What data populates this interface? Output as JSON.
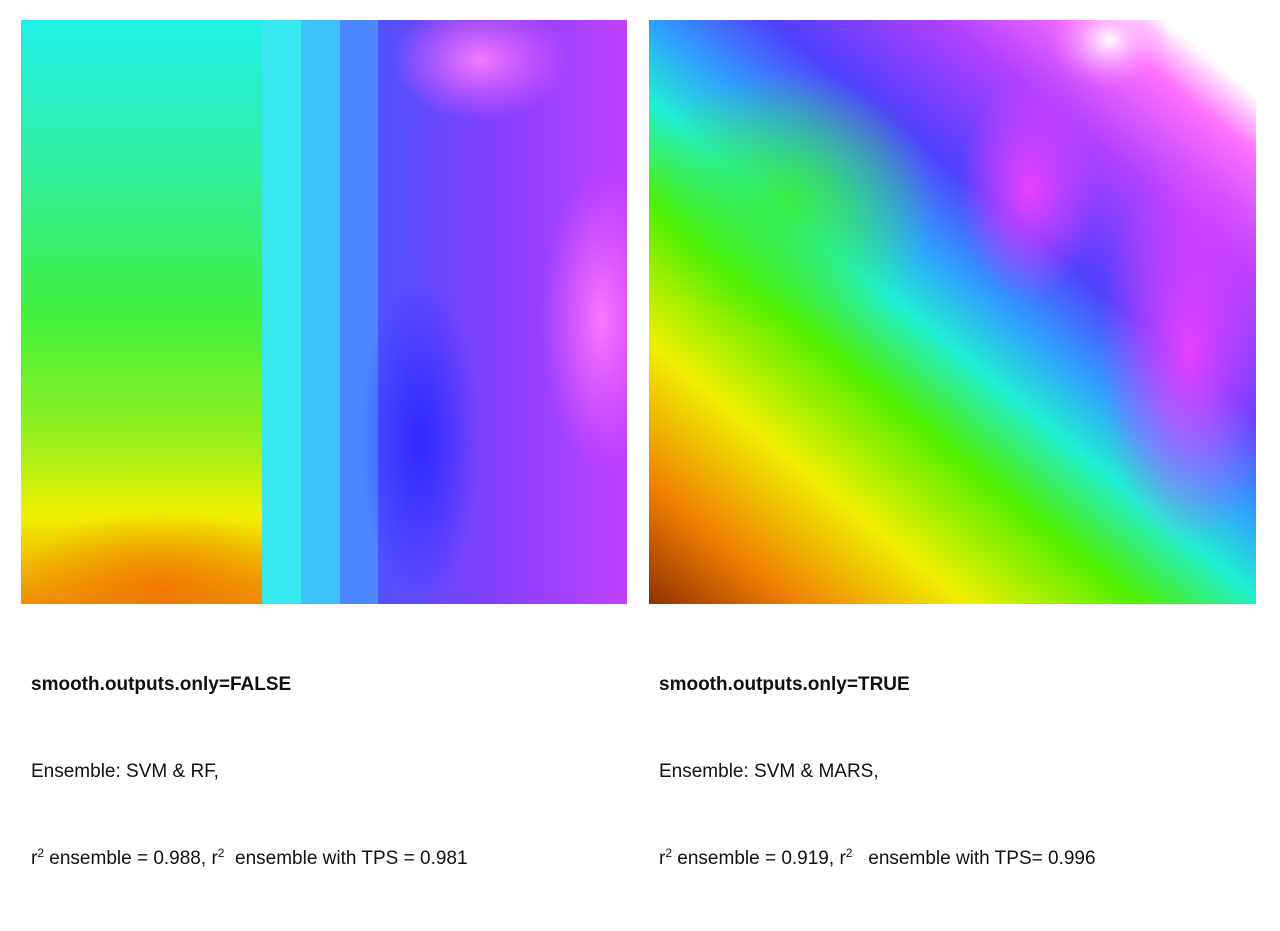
{
  "panels": [
    {
      "title": "smooth.outputs.only=FALSE",
      "ensemble": "Ensemble: SVM & RF,",
      "stats": [
        "r",
        "2",
        " ensemble = 0.988, ",
        "r",
        "2",
        "  ensemble with TPS = 0.981"
      ]
    },
    {
      "title": "smooth.outputs.only=TRUE",
      "ensemble": "Ensemble: SVM & MARS,",
      "stats": [
        "r",
        "2",
        " ensemble = 0.919, ",
        "r",
        "2",
        "   ensemble with TPS= 0.996"
      ]
    }
  ]
}
